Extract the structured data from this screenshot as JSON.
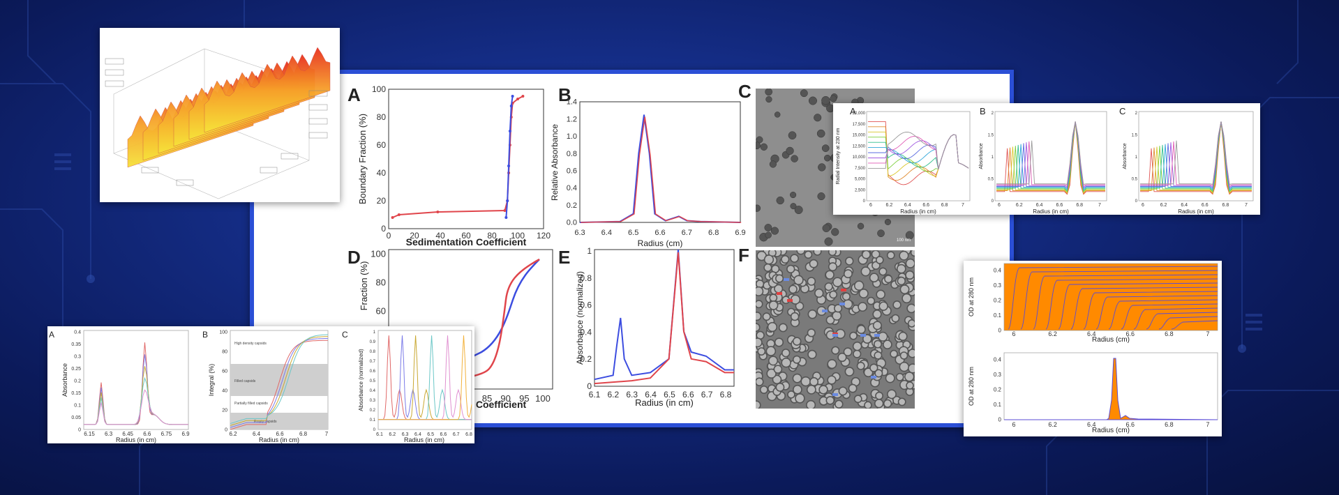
{
  "colors": {
    "bg": "#142c84",
    "frame": "#2b4fd6",
    "red": "#e0454b",
    "blue": "#3c4de0",
    "orange": "#ff8a00",
    "purple": "#5a4bd6"
  },
  "surface3d": {
    "icon": "3d-surface-plot"
  },
  "main": {
    "A": {
      "letter": "A",
      "xlabel": "Sedimentation Coefficient",
      "ylabel": "Boundary Fraction (%)",
      "xticks": [
        "0",
        "20",
        "40",
        "60",
        "80",
        "100",
        "120"
      ],
      "yticks": [
        "0",
        "20",
        "40",
        "60",
        "80",
        "100"
      ]
    },
    "B": {
      "letter": "B",
      "xlabel": "Radius (cm)",
      "ylabel": "Relative Absorbance",
      "xticks": [
        "6.3",
        "6.4",
        "6.5",
        "6.6",
        "6.7",
        "6.8",
        "6.9"
      ],
      "yticks": [
        "0.0",
        "0.2",
        "0.4",
        "0.6",
        "0.8",
        "1.0",
        "1.2",
        "1.4"
      ]
    },
    "C": {
      "letter": "C",
      "scale_text": "100 nm",
      "icon": "em-micrograph"
    },
    "D": {
      "letter": "D",
      "xlabel": "Coefficient",
      "ylabel": "Fraction (%)",
      "xticks": [
        "85",
        "90",
        "95",
        "100"
      ],
      "yticks": [
        "100",
        "80",
        "60"
      ]
    },
    "E": {
      "letter": "E",
      "xlabel": "Radius (in cm)",
      "ylabel": "Absorbance (normalized)",
      "xticks": [
        "6.1",
        "6.2",
        "6.3",
        "6.4",
        "6.5",
        "6.6",
        "6.7",
        "6.8"
      ],
      "yticks": [
        "0",
        "0.2",
        "0.4",
        "0.6",
        "0.8",
        "1"
      ]
    },
    "F": {
      "letter": "F",
      "icon": "em-micrograph"
    }
  },
  "topright": {
    "A": {
      "letter": "A",
      "xlabel": "Radius (in cm)",
      "ylabel": "Radial Intensity at 230 nm",
      "xticks": [
        "6",
        "6.2",
        "6.4",
        "6.6",
        "6.8",
        "7"
      ],
      "yticks": [
        "0",
        "2,500",
        "5,000",
        "7,500",
        "10,000",
        "12,500",
        "15,000",
        "17,500",
        "20,000"
      ]
    },
    "B": {
      "letter": "B",
      "xlabel": "Radius (in cm)",
      "ylabel": "Absorbance",
      "xticks": [
        "6",
        "6.2",
        "6.4",
        "6.6",
        "6.8",
        "7"
      ],
      "yticks": [
        "0",
        "0.5",
        "1",
        "1.5",
        "2"
      ]
    },
    "C": {
      "letter": "C",
      "xlabel": "Radius (in cm)",
      "ylabel": "Absorbance",
      "xticks": [
        "6",
        "6.2",
        "6.4",
        "6.6",
        "6.8",
        "7"
      ],
      "yticks": [
        "0",
        "0.5",
        "1",
        "1.5",
        "2"
      ]
    }
  },
  "bottomleft": {
    "A": {
      "letter": "A",
      "xlabel": "Radius (in cm)",
      "ylabel": "Absorbance",
      "xticks": [
        "6.15",
        "6.3",
        "6.45",
        "6.6",
        "6.75",
        "6.9"
      ],
      "yticks": [
        "0",
        "0.05",
        "0.1",
        "0.15",
        "0.2",
        "0.25",
        "0.3",
        "0.35",
        "0.4"
      ]
    },
    "B": {
      "letter": "B",
      "xlabel": "Radius (in cm)",
      "ylabel": "Integral (%)",
      "xticks": [
        "6.2",
        "6.4",
        "6.6",
        "6.8",
        "7"
      ],
      "yticks": [
        "0",
        "20",
        "40",
        "60",
        "80",
        "100"
      ],
      "bands": [
        "High density capsids",
        "Filled capsids",
        "Partially filled capsids",
        "Empty capsids"
      ]
    },
    "C": {
      "letter": "C",
      "xlabel": "Radius (in cm)",
      "ylabel": "Absorbance (normalized)",
      "xticks": [
        "6.1",
        "6.2",
        "6.3",
        "6.4",
        "6.5",
        "6.6",
        "6.7",
        "6.8"
      ],
      "yticks": [
        "0",
        "0.1",
        "0.2",
        "0.3",
        "0.4",
        "0.5",
        "0.6",
        "0.7",
        "0.8",
        "0.9",
        "1"
      ]
    }
  },
  "rightbottom": {
    "top": {
      "xlabel": "Radius (cm)",
      "ylabel": "OD at 280 nm",
      "xticks": [
        "6",
        "6.2",
        "6.4",
        "6.6",
        "6.8",
        "7"
      ],
      "yticks": [
        "0",
        "0.1",
        "0.2",
        "0.3",
        "0.4"
      ]
    },
    "bottom": {
      "xlabel": "Radius (cm)",
      "ylabel": "OD at 280 nm",
      "xticks": [
        "6",
        "6.2",
        "6.4",
        "6.6",
        "6.8",
        "7"
      ],
      "yticks": [
        "0",
        "0.1",
        "0.2",
        "0.3",
        "0.4"
      ]
    }
  },
  "chart_data": [
    {
      "type": "line",
      "panel": "main-A",
      "xlabel": "Sedimentation Coefficient",
      "ylabel": "Boundary Fraction (%)",
      "xlim": [
        0,
        120
      ],
      "ylim": [
        0,
        100
      ],
      "series": [
        {
          "x": [
            3,
            8,
            38,
            90,
            92,
            93,
            94,
            95,
            96,
            100,
            104
          ],
          "y": [
            8,
            10,
            12,
            13,
            20,
            40,
            60,
            80,
            90,
            93,
            95
          ]
        },
        {
          "x": [
            91,
            92,
            93,
            94,
            95,
            96
          ],
          "y": [
            8,
            20,
            45,
            70,
            88,
            95
          ]
        }
      ]
    },
    {
      "type": "line",
      "panel": "main-B",
      "xlabel": "Radius (cm)",
      "ylabel": "Relative Absorbance",
      "xlim": [
        6.3,
        6.9
      ],
      "ylim": [
        0,
        1.4
      ],
      "series": [
        {
          "x": [
            6.3,
            6.45,
            6.5,
            6.52,
            6.54,
            6.56,
            6.58,
            6.62,
            6.67,
            6.7,
            6.75,
            6.9
          ],
          "y": [
            0,
            0.01,
            0.1,
            0.8,
            1.25,
            0.8,
            0.1,
            0.02,
            0.07,
            0.02,
            0.01,
            0
          ]
        }
      ]
    },
    {
      "type": "line",
      "panel": "main-E",
      "xlabel": "Radius (in cm)",
      "ylabel": "Absorbance (normalized)",
      "xlim": [
        6.1,
        6.85
      ],
      "ylim": [
        0,
        1
      ],
      "series": [
        {
          "x": [
            6.1,
            6.2,
            6.22,
            6.24,
            6.26,
            6.3,
            6.4,
            6.5,
            6.55,
            6.58,
            6.62,
            6.7,
            6.8,
            6.85
          ],
          "y": [
            0.05,
            0.08,
            0.3,
            0.5,
            0.2,
            0.08,
            0.1,
            0.2,
            1.0,
            0.4,
            0.25,
            0.22,
            0.12,
            0.12
          ]
        },
        {
          "x": [
            6.1,
            6.3,
            6.4,
            6.5,
            6.55,
            6.58,
            6.62,
            6.7,
            6.8,
            6.85
          ],
          "y": [
            0.02,
            0.04,
            0.06,
            0.2,
            0.98,
            0.4,
            0.2,
            0.18,
            0.1,
            0.1
          ]
        }
      ]
    }
  ]
}
